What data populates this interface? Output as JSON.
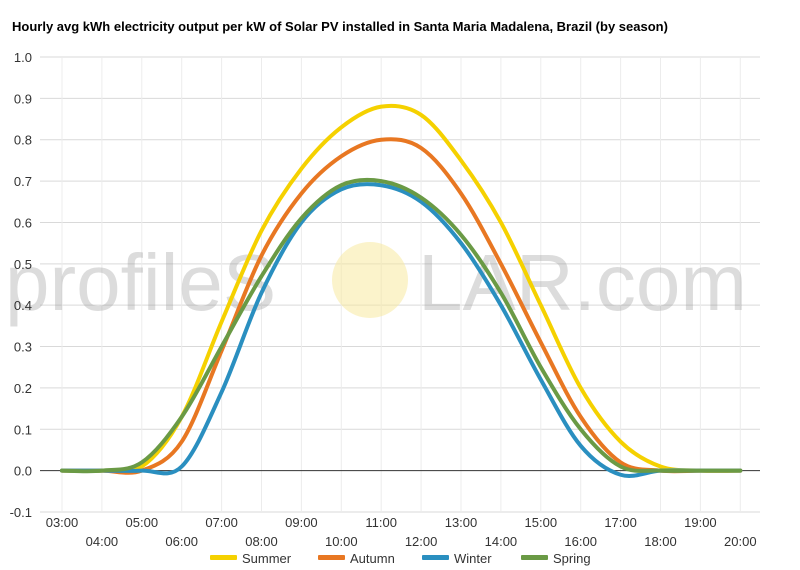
{
  "chart_data": {
    "type": "line",
    "title": "Hourly avg kWh electricity output per kW of Solar PV installed in Santa Maria Madalena, Brazil (by season)",
    "xlabel": "",
    "ylabel": "",
    "ylim": [
      -0.1,
      1.0
    ],
    "yticks": [
      "-0.1",
      "0.0",
      "0.1",
      "0.2",
      "0.3",
      "0.4",
      "0.5",
      "0.6",
      "0.7",
      "0.8",
      "0.9",
      "1.0"
    ],
    "x": [
      "03:00",
      "04:00",
      "05:00",
      "06:00",
      "07:00",
      "08:00",
      "09:00",
      "10:00",
      "11:00",
      "12:00",
      "13:00",
      "14:00",
      "15:00",
      "16:00",
      "17:00",
      "18:00",
      "19:00",
      "20:00"
    ],
    "grid": true,
    "legend_position": "bottom",
    "series": [
      {
        "name": "Summer",
        "color": "#f5d100",
        "values": [
          0.0,
          0.0,
          0.01,
          0.13,
          0.36,
          0.58,
          0.73,
          0.83,
          0.88,
          0.86,
          0.75,
          0.6,
          0.4,
          0.2,
          0.07,
          0.01,
          0.0,
          0.0
        ]
      },
      {
        "name": "Autumn",
        "color": "#e87722",
        "values": [
          0.0,
          0.0,
          0.0,
          0.07,
          0.29,
          0.52,
          0.67,
          0.76,
          0.8,
          0.78,
          0.67,
          0.5,
          0.31,
          0.13,
          0.02,
          0.0,
          0.0,
          0.0
        ]
      },
      {
        "name": "Winter",
        "color": "#2a8fc0",
        "values": [
          0.0,
          0.0,
          0.0,
          0.01,
          0.19,
          0.43,
          0.6,
          0.68,
          0.69,
          0.65,
          0.55,
          0.4,
          0.22,
          0.06,
          -0.01,
          0.0,
          0.0,
          0.0
        ]
      },
      {
        "name": "Spring",
        "color": "#6a9a45",
        "values": [
          0.0,
          0.0,
          0.02,
          0.13,
          0.3,
          0.47,
          0.61,
          0.69,
          0.7,
          0.66,
          0.57,
          0.43,
          0.25,
          0.1,
          0.01,
          0.0,
          0.0,
          0.0
        ]
      }
    ]
  },
  "watermark": {
    "text_left": "profileS",
    "text_right": "LAR.com"
  }
}
